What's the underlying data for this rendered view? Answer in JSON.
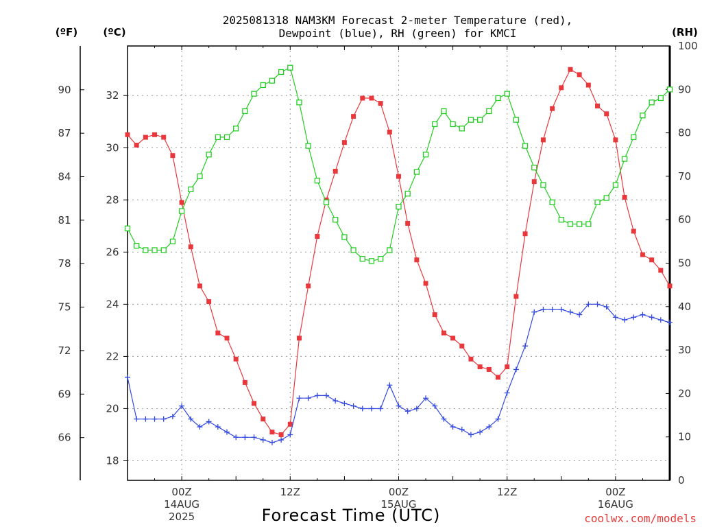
{
  "chart_data": {
    "type": "line",
    "title_lines": [
      "2025081318 NAM3KM Forecast 2-meter Temperature (red),",
      "Dewpoint (blue), RH (green) for KMCI"
    ],
    "xlabel": "Forecast Time (UTC)",
    "credit": "coolwx.com/models",
    "units": {
      "fahrenheit": "(ºF)",
      "celsius": "(ºC)",
      "rh": "(RH)"
    },
    "x_range_hours": [
      -6,
      54
    ],
    "x_ticks": [
      {
        "hour": 0,
        "lines": [
          "00Z",
          "14AUG",
          "2025"
        ]
      },
      {
        "hour": 12,
        "lines": [
          "12Z"
        ]
      },
      {
        "hour": 24,
        "lines": [
          "00Z",
          "15AUG"
        ]
      },
      {
        "hour": 36,
        "lines": [
          "12Z"
        ]
      },
      {
        "hour": 48,
        "lines": [
          "00Z",
          "16AUG"
        ]
      }
    ],
    "y_celsius": {
      "range": [
        17.25,
        33.9
      ],
      "ticks": [
        18,
        20,
        22,
        24,
        26,
        28,
        30,
        32
      ]
    },
    "y_fahrenheit": {
      "ticks": [
        66,
        69,
        72,
        75,
        78,
        81,
        84,
        87,
        90
      ]
    },
    "y_rh": {
      "range": [
        0,
        100
      ],
      "ticks": [
        0,
        10,
        20,
        30,
        40,
        50,
        60,
        70,
        80,
        90,
        100
      ]
    },
    "series": [
      {
        "id": "temperature",
        "axis": "celsius",
        "color": "#e8383c",
        "marker": "filled-square",
        "x": [
          -6,
          -5,
          -4,
          -3,
          -2,
          -1,
          0,
          1,
          2,
          3,
          4,
          5,
          6,
          7,
          8,
          9,
          10,
          11,
          12,
          13,
          14,
          15,
          16,
          17,
          18,
          19,
          20,
          21,
          22,
          23,
          24,
          25,
          26,
          27,
          28,
          29,
          30,
          31,
          32,
          33,
          34,
          35,
          36,
          37,
          38,
          39,
          40,
          41,
          42,
          43,
          44,
          45,
          46,
          47,
          48,
          49,
          50,
          51,
          52,
          53,
          54
        ],
        "values": [
          30.5,
          30.1,
          30.4,
          30.5,
          30.4,
          29.7,
          27.9,
          26.2,
          24.7,
          24.1,
          22.9,
          22.7,
          21.9,
          21.0,
          20.2,
          19.6,
          19.1,
          19.0,
          19.4,
          22.7,
          24.7,
          26.6,
          28.0,
          29.1,
          30.2,
          31.2,
          31.9,
          31.9,
          31.7,
          30.6,
          28.9,
          27.1,
          25.7,
          24.8,
          23.6,
          22.9,
          22.7,
          22.4,
          21.9,
          21.6,
          21.5,
          21.2,
          21.6,
          24.3,
          26.7,
          28.7,
          30.3,
          31.5,
          32.3,
          33.0,
          32.8,
          32.4,
          31.6,
          31.3,
          30.3,
          28.1,
          26.8,
          25.9,
          25.7,
          25.3,
          24.7
        ]
      },
      {
        "id": "dewpoint",
        "axis": "celsius",
        "color": "#3348e0",
        "marker": "plus",
        "x": [
          -6,
          -5,
          -4,
          -3,
          -2,
          -1,
          0,
          1,
          2,
          3,
          4,
          5,
          6,
          7,
          8,
          9,
          10,
          11,
          12,
          13,
          14,
          15,
          16,
          17,
          18,
          19,
          20,
          21,
          22,
          23,
          24,
          25,
          26,
          27,
          28,
          29,
          30,
          31,
          32,
          33,
          34,
          35,
          36,
          37,
          38,
          39,
          40,
          41,
          42,
          43,
          44,
          45,
          46,
          47,
          48,
          49,
          50,
          51,
          52,
          53,
          54
        ],
        "values": [
          21.2,
          19.6,
          19.6,
          19.6,
          19.6,
          19.7,
          20.1,
          19.6,
          19.3,
          19.5,
          19.3,
          19.1,
          18.9,
          18.9,
          18.9,
          18.8,
          18.7,
          18.8,
          19.0,
          20.4,
          20.4,
          20.5,
          20.5,
          20.3,
          20.2,
          20.1,
          20.0,
          20.0,
          20.0,
          20.9,
          20.1,
          19.9,
          20.0,
          20.4,
          20.1,
          19.6,
          19.3,
          19.2,
          19.0,
          19.1,
          19.3,
          19.6,
          20.6,
          21.5,
          22.4,
          23.7,
          23.8,
          23.8,
          23.8,
          23.7,
          23.6,
          24.0,
          24.0,
          23.9,
          23.5,
          23.4,
          23.5,
          23.6,
          23.5,
          23.4,
          23.3
        ]
      },
      {
        "id": "rh",
        "axis": "rh",
        "color": "#22cc22",
        "marker": "open-square",
        "x": [
          -6,
          -5,
          -4,
          -3,
          -2,
          -1,
          0,
          1,
          2,
          3,
          4,
          5,
          6,
          7,
          8,
          9,
          10,
          11,
          12,
          13,
          14,
          15,
          16,
          17,
          18,
          19,
          20,
          21,
          22,
          23,
          24,
          25,
          26,
          27,
          28,
          29,
          30,
          31,
          32,
          33,
          34,
          35,
          36,
          37,
          38,
          39,
          40,
          41,
          42,
          43,
          44,
          45,
          46,
          47,
          48,
          49,
          50,
          51,
          52,
          53,
          54
        ],
        "values": [
          58,
          54,
          53,
          53,
          53,
          55,
          62,
          67,
          70,
          75,
          79,
          79,
          81,
          85,
          89,
          91,
          92,
          94,
          95,
          87,
          77,
          69,
          64,
          60,
          56,
          53,
          51,
          50.5,
          51,
          53,
          63,
          66,
          71,
          75,
          82,
          85,
          82,
          81,
          83,
          83,
          85,
          88,
          89,
          83,
          77,
          72,
          68,
          64,
          60,
          59,
          59,
          59,
          64,
          65,
          68,
          74,
          79,
          84,
          87,
          88,
          90
        ]
      }
    ]
  }
}
